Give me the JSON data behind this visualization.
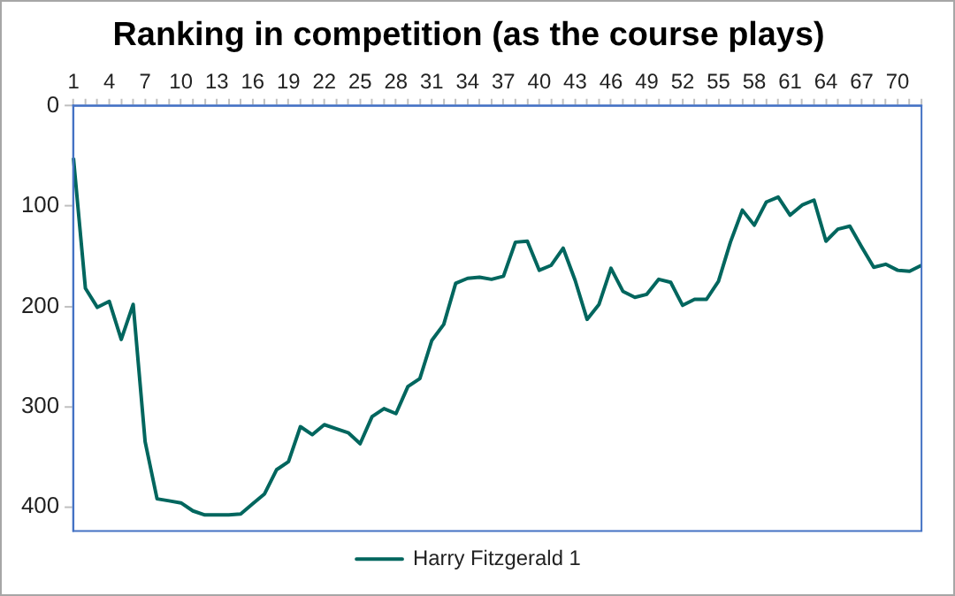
{
  "chart_data": {
    "type": "line",
    "title": "Ranking in competition (as the course plays)",
    "categories": [
      "1",
      null,
      null,
      "4",
      null,
      null,
      "7",
      null,
      null,
      "10",
      null,
      null,
      "13",
      null,
      null,
      "16",
      null,
      null,
      "19",
      null,
      null,
      "22",
      null,
      null,
      "25",
      null,
      null,
      "28",
      null,
      null,
      "31",
      null,
      null,
      "34",
      null,
      null,
      "37",
      null,
      null,
      "40",
      null,
      null,
      "43",
      null,
      null,
      "46",
      null,
      null,
      "49",
      null,
      null,
      "52",
      null,
      null,
      "55",
      null,
      null,
      "58",
      null,
      null,
      "61",
      null,
      null,
      "64",
      null,
      null,
      "67",
      null,
      null,
      "70",
      null,
      null
    ],
    "series": [
      {
        "name": "Harry Fitzgerald 1",
        "color": "#00665e",
        "values": [
          52,
          182,
          201,
          195,
          233,
          198,
          335,
          392,
          394,
          396,
          404,
          408,
          408,
          408,
          407,
          397,
          387,
          363,
          355,
          320,
          328,
          318,
          322,
          326,
          337,
          310,
          302,
          307,
          280,
          272,
          234,
          218,
          177,
          172,
          171,
          173,
          170,
          136,
          135,
          164,
          159,
          142,
          174,
          213,
          198,
          162,
          185,
          191,
          188,
          173,
          176,
          199,
          193,
          193,
          175,
          136,
          104,
          119,
          96,
          91,
          109,
          99,
          94,
          135,
          123,
          120,
          141,
          161,
          158,
          164,
          165,
          159
        ]
      }
    ],
    "ylim": [
      424,
      0
    ],
    "yticks": [
      0,
      100,
      200,
      300,
      400
    ],
    "grid": false,
    "legend": "bottom",
    "marker": "none",
    "line_style": "solid"
  }
}
